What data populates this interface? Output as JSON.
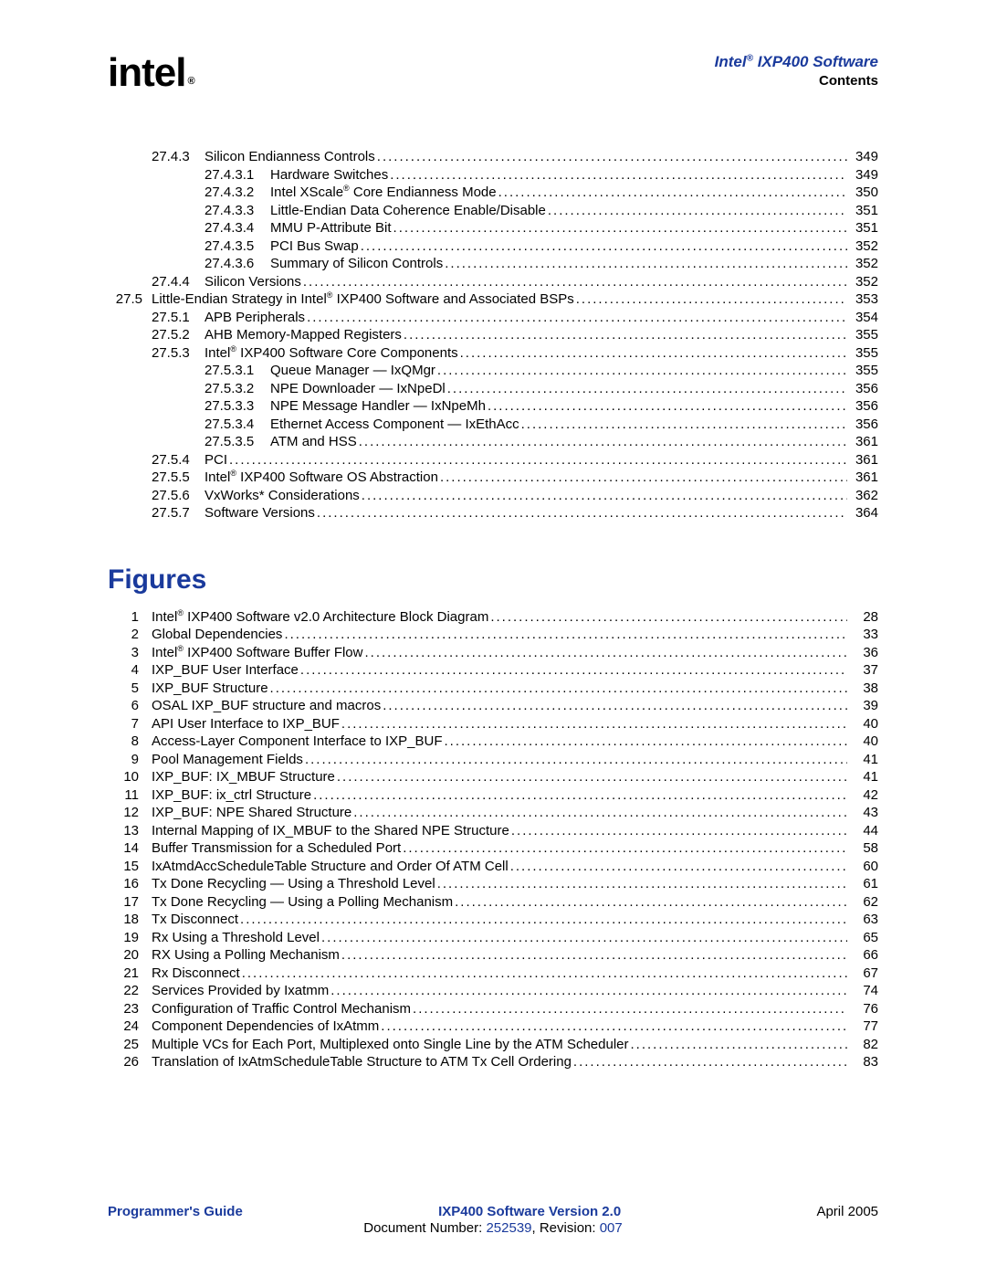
{
  "header": {
    "logo": "intel",
    "logo_reg": "®",
    "title_pre": "Intel",
    "title_sup": "®",
    "title_post": " IXP400 Software",
    "subtitle": "Contents"
  },
  "toc": [
    {
      "l": 2,
      "num": "27.4.3",
      "text": "Silicon Endianness Controls",
      "page": "349"
    },
    {
      "l": 3,
      "num": "27.4.3.1",
      "text": "Hardware Switches",
      "page": "349"
    },
    {
      "l": 3,
      "num": "27.4.3.2",
      "text": "Intel XScale",
      "sup": "®",
      "text2": " Core Endianness Mode",
      "page": "350"
    },
    {
      "l": 3,
      "num": "27.4.3.3",
      "text": "Little-Endian Data Coherence Enable/Disable",
      "page": "351"
    },
    {
      "l": 3,
      "num": "27.4.3.4",
      "text": "MMU P-Attribute Bit",
      "page": "351"
    },
    {
      "l": 3,
      "num": "27.4.3.5",
      "text": "PCI Bus Swap",
      "page": "352"
    },
    {
      "l": 3,
      "num": "27.4.3.6",
      "text": "Summary of Silicon Controls",
      "page": "352"
    },
    {
      "l": 2,
      "num": "27.4.4",
      "text": "Silicon Versions",
      "page": "352"
    },
    {
      "l": 1,
      "num": "27.5",
      "text": "Little-Endian Strategy in Intel",
      "sup": "®",
      "text2": " IXP400 Software and Associated BSPs",
      "page": "353"
    },
    {
      "l": 2,
      "num": "27.5.1",
      "text": "APB Peripherals",
      "page": "354"
    },
    {
      "l": 2,
      "num": "27.5.2",
      "text": "AHB Memory-Mapped Registers",
      "page": "355"
    },
    {
      "l": 2,
      "num": "27.5.3",
      "text": "Intel",
      "sup": "®",
      "text2": " IXP400 Software Core Components",
      "page": "355"
    },
    {
      "l": 3,
      "num": "27.5.3.1",
      "text": "Queue Manager — IxQMgr",
      "page": "355"
    },
    {
      "l": 3,
      "num": "27.5.3.2",
      "text": "NPE Downloader — IxNpeDl",
      "page": "356"
    },
    {
      "l": 3,
      "num": "27.5.3.3",
      "text": "NPE Message Handler — IxNpeMh",
      "page": "356"
    },
    {
      "l": 3,
      "num": "27.5.3.4",
      "text": "Ethernet Access Component — IxEthAcc",
      "page": "356"
    },
    {
      "l": 3,
      "num": "27.5.3.5",
      "text": "ATM and HSS",
      "page": "361"
    },
    {
      "l": 2,
      "num": "27.5.4",
      "text": "PCI",
      "page": "361"
    },
    {
      "l": 2,
      "num": "27.5.5",
      "text": "Intel",
      "sup": "®",
      "text2": " IXP400 Software OS Abstraction",
      "page": "361"
    },
    {
      "l": 2,
      "num": "27.5.6",
      "text": "VxWorks* Considerations",
      "page": "362"
    },
    {
      "l": 2,
      "num": "27.5.7",
      "text": "Software Versions",
      "page": "364"
    }
  ],
  "figures_heading": "Figures",
  "figures": [
    {
      "num": "1",
      "text": "Intel",
      "sup": "®",
      "text2": " IXP400 Software v2.0 Architecture Block Diagram",
      "page": "28"
    },
    {
      "num": "2",
      "text": "Global Dependencies",
      "page": "33"
    },
    {
      "num": "3",
      "text": "Intel",
      "sup": "®",
      "text2": " IXP400 Software Buffer Flow",
      "page": "36"
    },
    {
      "num": "4",
      "text": "IXP_BUF User Interface",
      "page": "37"
    },
    {
      "num": "5",
      "text": "IXP_BUF Structure",
      "page": "38"
    },
    {
      "num": "6",
      "text": "OSAL IXP_BUF structure and macros",
      "page": "39"
    },
    {
      "num": "7",
      "text": "API User Interface to IXP_BUF",
      "page": "40"
    },
    {
      "num": "8",
      "text": "Access-Layer Component Interface to IXP_BUF",
      "page": "40"
    },
    {
      "num": "9",
      "text": "Pool Management Fields",
      "page": "41"
    },
    {
      "num": "10",
      "text": "IXP_BUF: IX_MBUF Structure",
      "page": "41"
    },
    {
      "num": "11",
      "text": "IXP_BUF: ix_ctrl Structure",
      "page": "42"
    },
    {
      "num": "12",
      "text": "IXP_BUF: NPE Shared Structure",
      "page": "43"
    },
    {
      "num": "13",
      "text": "Internal Mapping of IX_MBUF to the Shared NPE Structure",
      "page": "44"
    },
    {
      "num": "14",
      "text": "Buffer Transmission for a Scheduled Port",
      "page": "58"
    },
    {
      "num": "15",
      "text": "IxAtmdAccScheduleTable Structure and Order Of ATM Cell",
      "page": "60"
    },
    {
      "num": "16",
      "text": "Tx Done Recycling — Using a Threshold Level",
      "page": "61"
    },
    {
      "num": "17",
      "text": "Tx Done Recycling — Using a Polling Mechanism",
      "page": "62"
    },
    {
      "num": "18",
      "text": "Tx Disconnect",
      "page": "63"
    },
    {
      "num": "19",
      "text": "Rx Using a Threshold Level",
      "page": "65"
    },
    {
      "num": "20",
      "text": "RX Using a Polling Mechanism",
      "page": "66"
    },
    {
      "num": "21",
      "text": "Rx Disconnect",
      "page": "67"
    },
    {
      "num": "22",
      "text": "Services Provided by Ixatmm",
      "page": "74"
    },
    {
      "num": "23",
      "text": "Configuration of Traffic Control Mechanism",
      "page": "76"
    },
    {
      "num": "24",
      "text": "Component Dependencies of IxAtmm",
      "page": "77"
    },
    {
      "num": "25",
      "text": "Multiple VCs for Each Port, Multiplexed onto Single Line by the ATM Scheduler",
      "page": "82"
    },
    {
      "num": "26",
      "text": "Translation of IxAtmScheduleTable Structure to ATM Tx Cell Ordering",
      "page": "83"
    }
  ],
  "footer": {
    "left": "Programmer's Guide",
    "center": "IXP400 Software Version 2.0",
    "right": "April 2005",
    "doc_label": "Document Number: ",
    "doc_num": "252539",
    "rev_label": ", Revision: ",
    "rev_num": "007"
  }
}
